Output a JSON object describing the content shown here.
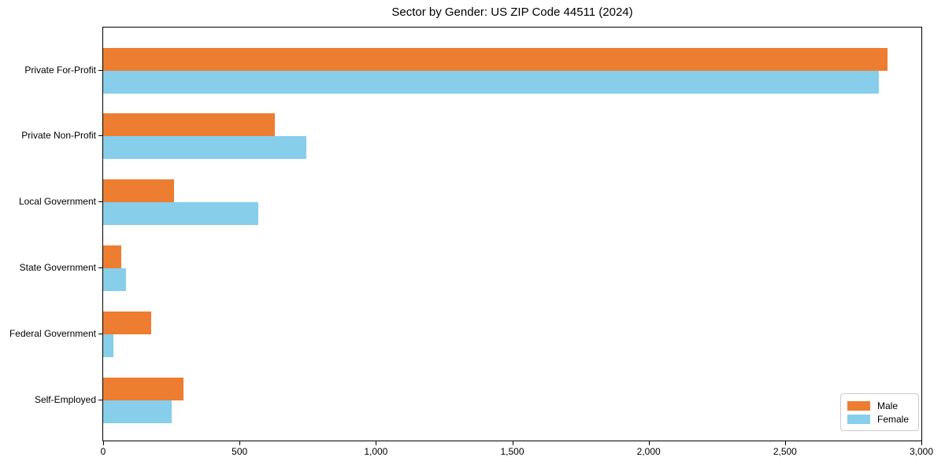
{
  "chart_data": {
    "type": "bar",
    "orientation": "horizontal",
    "title": "Sector by Gender: US ZIP Code 44511 (2024)",
    "xlabel": "",
    "ylabel": "",
    "categories": [
      "Private For-Profit",
      "Private Non-Profit",
      "Local Government",
      "State Government",
      "Federal Government",
      "Self-Employed"
    ],
    "series": [
      {
        "name": "Male",
        "color": "#ED7D31",
        "values": [
          2875,
          630,
          260,
          65,
          175,
          295
        ]
      },
      {
        "name": "Female",
        "color": "#87CEEB",
        "values": [
          2845,
          745,
          570,
          85,
          38,
          250
        ]
      }
    ],
    "xlim": [
      0,
      3000
    ],
    "xticks": [
      0,
      500,
      1000,
      1500,
      2000,
      2500,
      3000
    ],
    "xtick_labels": [
      "0",
      "500",
      "1,000",
      "1,500",
      "2,000",
      "2,500",
      "3,000"
    ],
    "grid": false,
    "legend_position": "lower right"
  }
}
